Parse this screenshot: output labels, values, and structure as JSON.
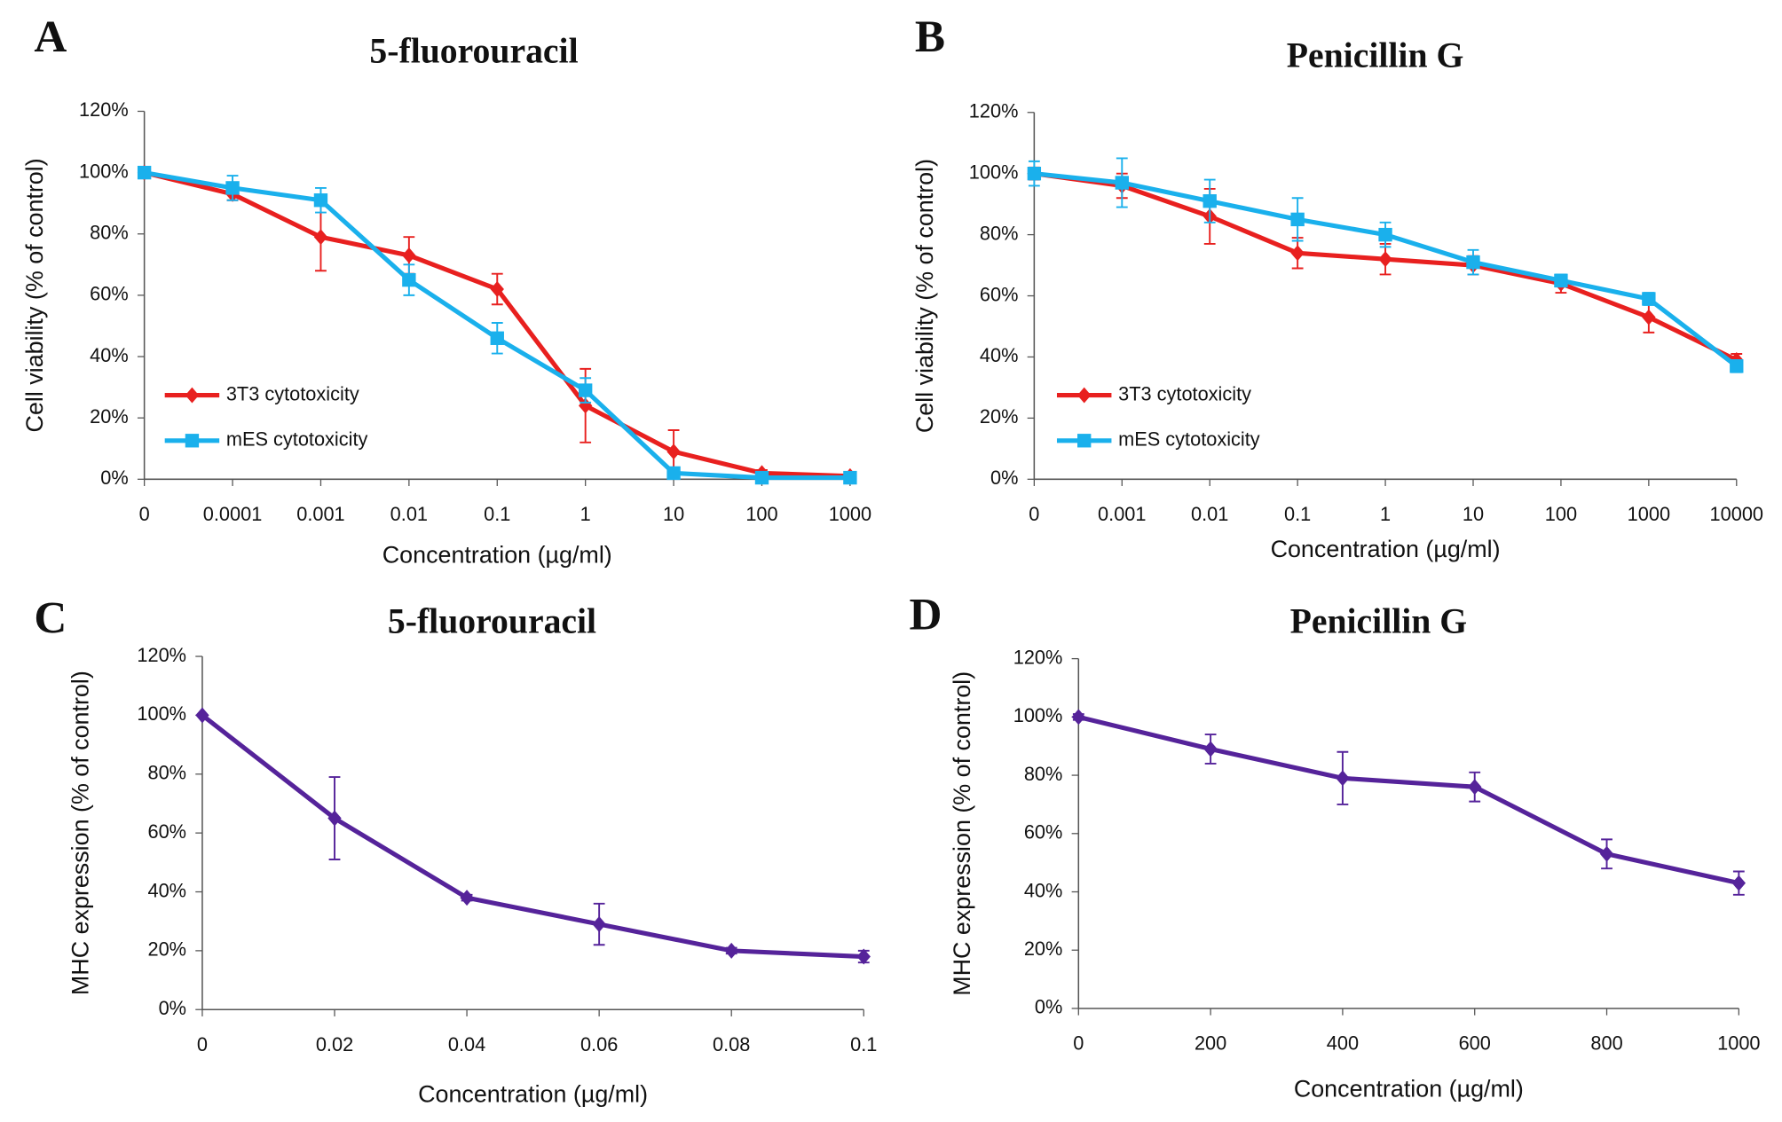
{
  "chart_data": [
    {
      "type": "line",
      "panel": "A",
      "title": "5-fluorouracil",
      "xlabel": "Concentration (µg/ml)",
      "ylabel": "Cell viability (% of control)",
      "categories": [
        "0",
        "0.0001",
        "0.001",
        "0.01",
        "0.1",
        "1",
        "10",
        "100",
        "1000"
      ],
      "ylim": [
        0,
        120
      ],
      "yticks": [
        {
          "value": 0,
          "label": "0%"
        },
        {
          "value": 20,
          "label": "20%"
        },
        {
          "value": 40,
          "label": "40%"
        },
        {
          "value": 60,
          "label": "60%"
        },
        {
          "value": 80,
          "label": "80%"
        },
        {
          "value": 100,
          "label": "100%"
        },
        {
          "value": 120,
          "label": "120%"
        }
      ],
      "legend": "lower-left",
      "series": [
        {
          "name": "3T3 cytotoxicity",
          "color": "#e8201f",
          "marker": "diamond",
          "values": [
            100,
            93,
            79,
            73,
            62,
            24,
            9,
            2,
            1
          ],
          "errors": [
            0,
            2,
            11,
            6,
            5,
            12,
            7,
            1,
            1
          ]
        },
        {
          "name": "mES cytotoxicity",
          "color": "#1ab0ec",
          "marker": "square",
          "values": [
            100,
            95,
            91,
            65,
            46,
            29,
            2,
            0.5,
            0.5
          ],
          "errors": [
            0,
            4,
            4,
            5,
            5,
            4,
            1,
            0.5,
            0.5
          ]
        }
      ]
    },
    {
      "type": "line",
      "panel": "B",
      "title": "Penicillin  G",
      "xlabel": "Concentration (µg/ml)",
      "ylabel": "Cell viability (% of control)",
      "categories": [
        "0",
        "0.001",
        "0.01",
        "0.1",
        "1",
        "10",
        "100",
        "1000",
        "10000"
      ],
      "ylim": [
        0,
        120
      ],
      "yticks": [
        {
          "value": 0,
          "label": "0%"
        },
        {
          "value": 20,
          "label": "20%"
        },
        {
          "value": 40,
          "label": "40%"
        },
        {
          "value": 60,
          "label": "60%"
        },
        {
          "value": 80,
          "label": "80%"
        },
        {
          "value": 100,
          "label": "100%"
        },
        {
          "value": 120,
          "label": "120%"
        }
      ],
      "legend": "lower-left",
      "series": [
        {
          "name": "3T3 cytotoxicity",
          "color": "#e8201f",
          "marker": "diamond",
          "values": [
            100,
            96,
            86,
            74,
            72,
            70,
            64,
            53,
            39
          ],
          "errors": [
            2,
            4,
            9,
            5,
            5,
            3,
            3,
            5,
            2
          ]
        },
        {
          "name": "mES cytotoxicity",
          "color": "#1ab0ec",
          "marker": "square",
          "values": [
            100,
            97,
            91,
            85,
            80,
            71,
            65,
            59,
            37
          ],
          "errors": [
            4,
            8,
            7,
            7,
            4,
            4,
            2,
            2,
            2
          ]
        }
      ]
    },
    {
      "type": "line",
      "panel": "C",
      "title": "5-fluorouracil",
      "xlabel": "Concentration (µg/ml)",
      "ylabel": "MHC expression (% of control)",
      "x": [
        0,
        0.02,
        0.04,
        0.06,
        0.08,
        0.1
      ],
      "xlim": [
        0,
        0.1
      ],
      "xticks": [
        0,
        0.02,
        0.04,
        0.06,
        0.08,
        0.1
      ],
      "ylim": [
        0,
        120
      ],
      "yticks": [
        {
          "value": 0,
          "label": "0%"
        },
        {
          "value": 20,
          "label": "20%"
        },
        {
          "value": 40,
          "label": "40%"
        },
        {
          "value": 60,
          "label": "60%"
        },
        {
          "value": 80,
          "label": "80%"
        },
        {
          "value": 100,
          "label": "100%"
        },
        {
          "value": 120,
          "label": "120%"
        }
      ],
      "series": [
        {
          "color": "#55239a",
          "marker": "diamond",
          "values": [
            100,
            65,
            38,
            29,
            20,
            18
          ],
          "errors": [
            0,
            14,
            1,
            7,
            1,
            2
          ]
        }
      ]
    },
    {
      "type": "line",
      "panel": "D",
      "title": "Penicillin  G",
      "xlabel": "Concentration (µg/ml)",
      "ylabel": "MHC expression (% of control)",
      "x": [
        0,
        200,
        400,
        600,
        800,
        1000
      ],
      "xlim": [
        0,
        1000
      ],
      "xticks": [
        0,
        200,
        400,
        600,
        800,
        1000
      ],
      "ylim": [
        0,
        120
      ],
      "yticks": [
        {
          "value": 0,
          "label": "0%"
        },
        {
          "value": 20,
          "label": "20%"
        },
        {
          "value": 40,
          "label": "40%"
        },
        {
          "value": 60,
          "label": "60%"
        },
        {
          "value": 80,
          "label": "80%"
        },
        {
          "value": 100,
          "label": "100%"
        },
        {
          "value": 120,
          "label": "120%"
        }
      ],
      "series": [
        {
          "color": "#55239a",
          "marker": "diamond",
          "values": [
            100,
            89,
            79,
            76,
            53,
            43
          ],
          "errors": [
            1,
            5,
            9,
            5,
            5,
            4
          ]
        }
      ]
    }
  ]
}
